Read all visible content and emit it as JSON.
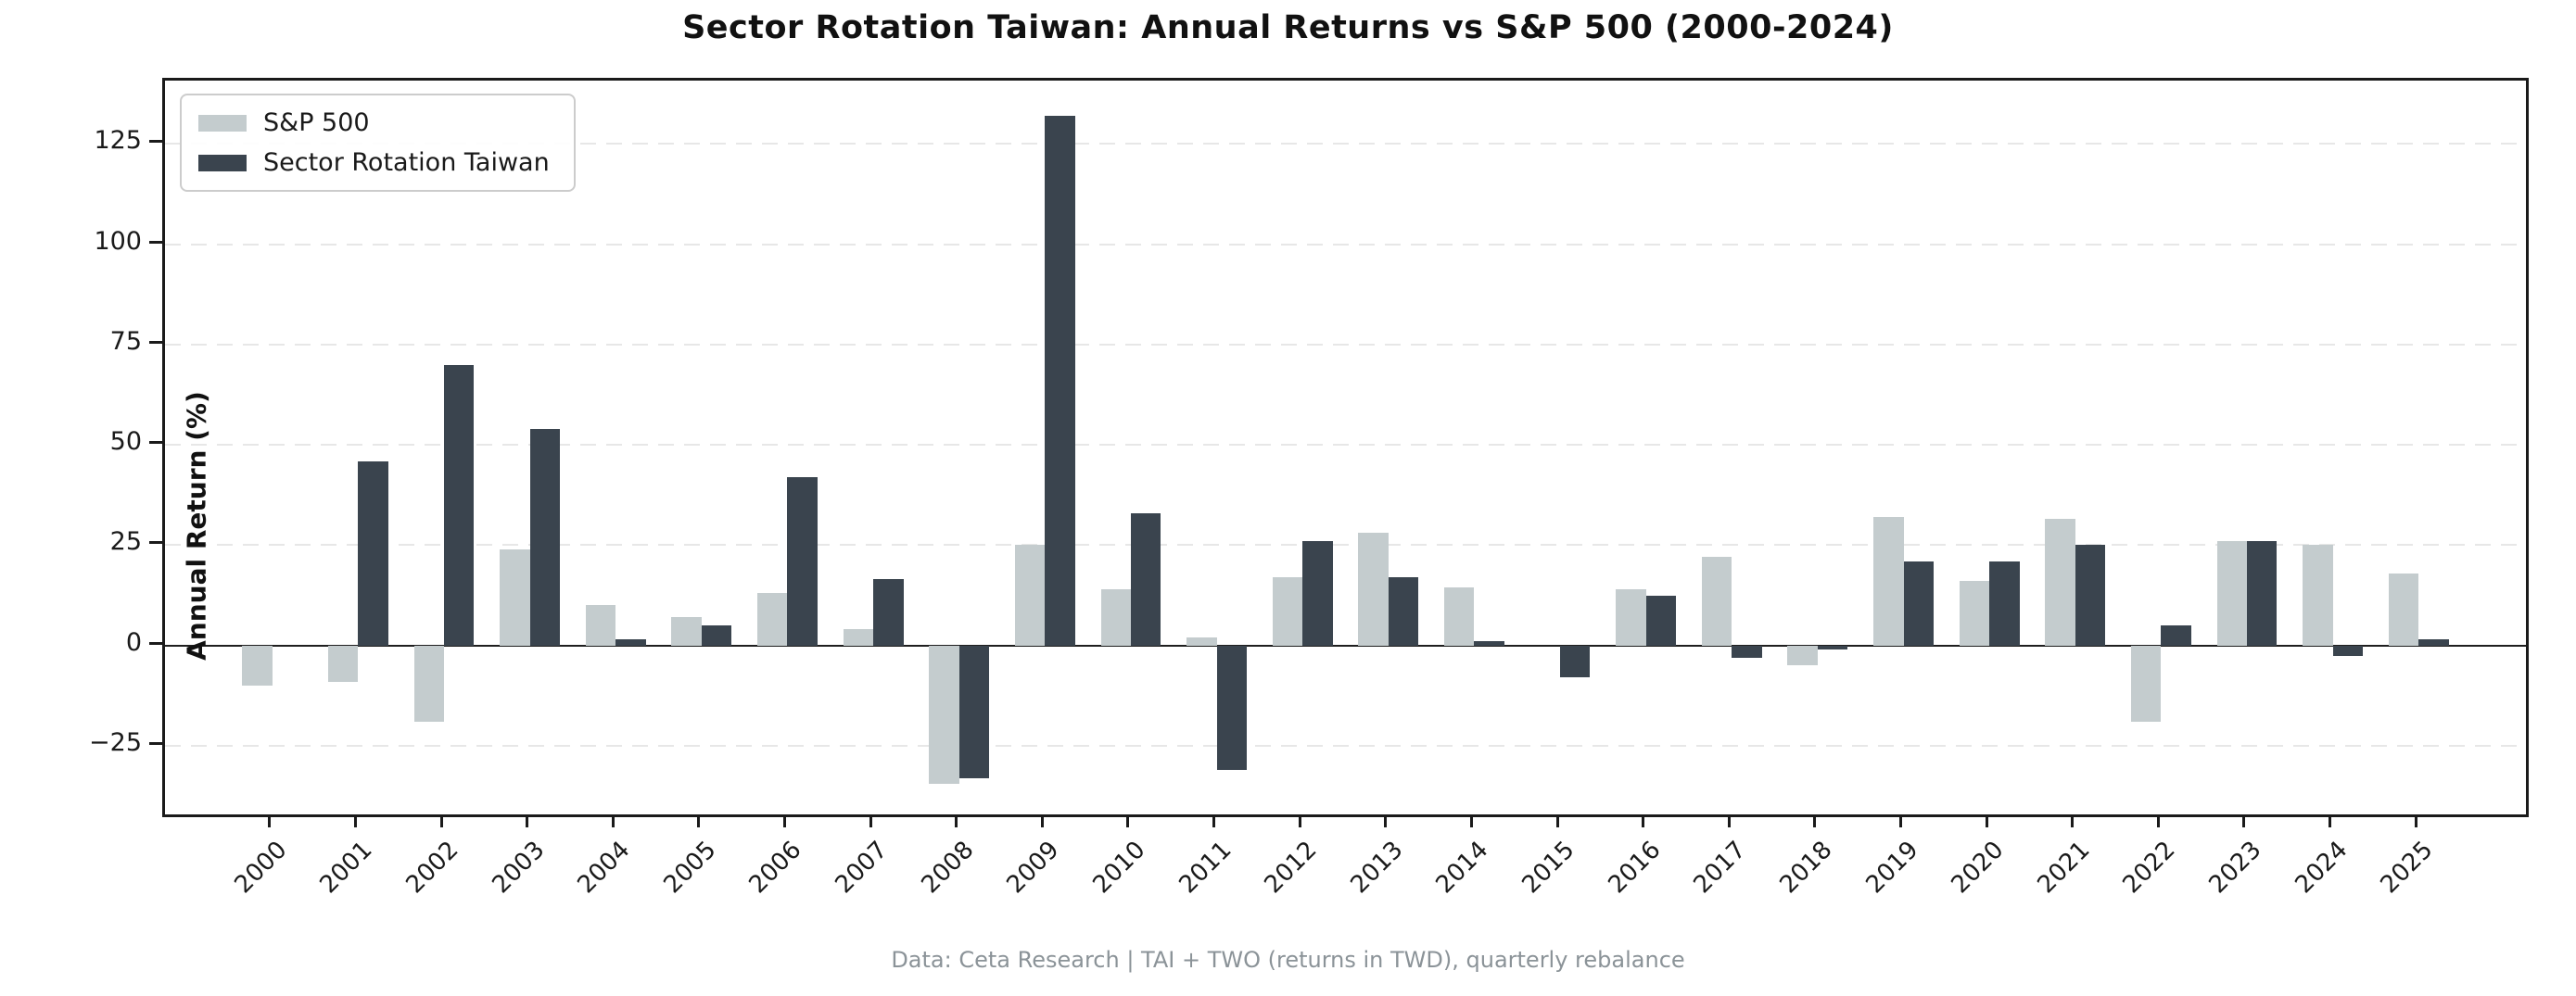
{
  "title": "Sector Rotation Taiwan: Annual Returns vs S&P 500 (2000-2024)",
  "footer": "Data: Ceta Research | TAI + TWO (returns in TWD), quarterly rebalance",
  "colors": {
    "sp500": "#c4ccce",
    "strategy": "#3a444e",
    "spine": "#1a1a1a",
    "grid": "#e7e7e7",
    "zero_line": "#1f1f1f",
    "footer_text": "#8b9398"
  },
  "chart_data": {
    "type": "bar",
    "title": "Sector Rotation Taiwan: Annual Returns vs S&P 500 (2000-2024)",
    "xlabel": "",
    "ylabel": "Annual Return (%)",
    "categories": [
      "2000",
      "2001",
      "2002",
      "2003",
      "2004",
      "2005",
      "2006",
      "2007",
      "2008",
      "2009",
      "2010",
      "2011",
      "2012",
      "2013",
      "2014",
      "2015",
      "2016",
      "2017",
      "2018",
      "2019",
      "2020",
      "2021",
      "2022",
      "2023",
      "2024",
      "2025"
    ],
    "series": [
      {
        "name": "S&P 500",
        "color": "#c4ccce",
        "values": [
          -10,
          -9,
          -19,
          24,
          10,
          7,
          13,
          4,
          -34.5,
          25,
          14,
          2,
          17,
          28,
          14.5,
          0,
          14,
          22,
          -5,
          32,
          16,
          31.5,
          -19,
          26,
          25,
          18
        ]
      },
      {
        "name": "Sector Rotation Taiwan",
        "color": "#3a444e",
        "values": [
          0,
          46,
          70,
          54,
          1.5,
          5,
          42,
          16.5,
          -33,
          132,
          33,
          -31,
          26,
          17,
          1,
          -8,
          12.5,
          -3,
          -1,
          21,
          21,
          25,
          5,
          26,
          -2.5,
          1.5
        ]
      }
    ],
    "yticks": [
      -25,
      0,
      25,
      50,
      75,
      100,
      125
    ],
    "ylim": [
      -42.1,
      140.8
    ],
    "grid": "horizontal-dashed",
    "legend_position": "upper-left"
  }
}
